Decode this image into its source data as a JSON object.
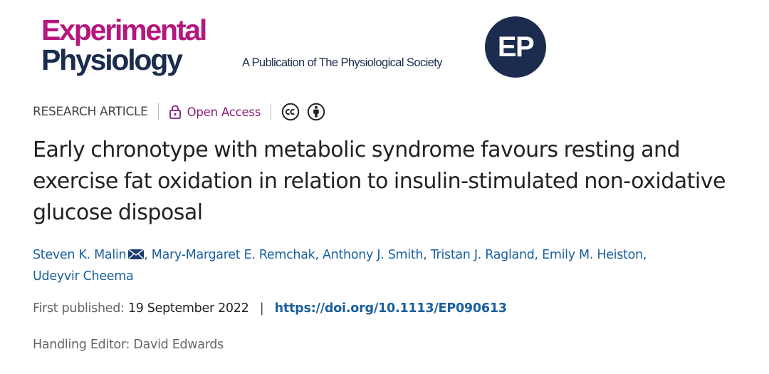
{
  "header": {
    "logo_line1": "Experimental",
    "logo_line2": "Physiology",
    "publication_note": "A Publication of The Physiological Society",
    "badge_text": "EP",
    "colors": {
      "logo_magenta": "#b5177e",
      "logo_navy": "#1b2c4e"
    }
  },
  "meta": {
    "article_type": "RESEARCH ARTICLE",
    "open_access_label": "Open Access",
    "license_icons": [
      "creative-commons-icon",
      "attribution-icon"
    ],
    "colors": {
      "open_access": "#8a1a76"
    }
  },
  "article": {
    "title": "Early chronotype with metabolic syndrome favours resting and exercise fat oxidation in relation to insulin-stimulated non-oxidative glucose disposal"
  },
  "authors": [
    {
      "name": "Steven K. Malin",
      "corresponding": true
    },
    {
      "name": "Mary-Margaret E. Remchak"
    },
    {
      "name": "Anthony J. Smith"
    },
    {
      "name": "Tristan J. Ragland"
    },
    {
      "name": "Emily M. Heiston"
    },
    {
      "name": "Udeyvir Cheema"
    }
  ],
  "author_separator": ", ",
  "publication": {
    "first_published_label": "First published:",
    "first_published_date": "19 September 2022",
    "separator": "|",
    "doi_url": "https://doi.org/10.1113/EP090613",
    "colors": {
      "link": "#1a5f9e"
    }
  },
  "editor": {
    "label": "Handling Editor:",
    "name": "David Edwards"
  }
}
